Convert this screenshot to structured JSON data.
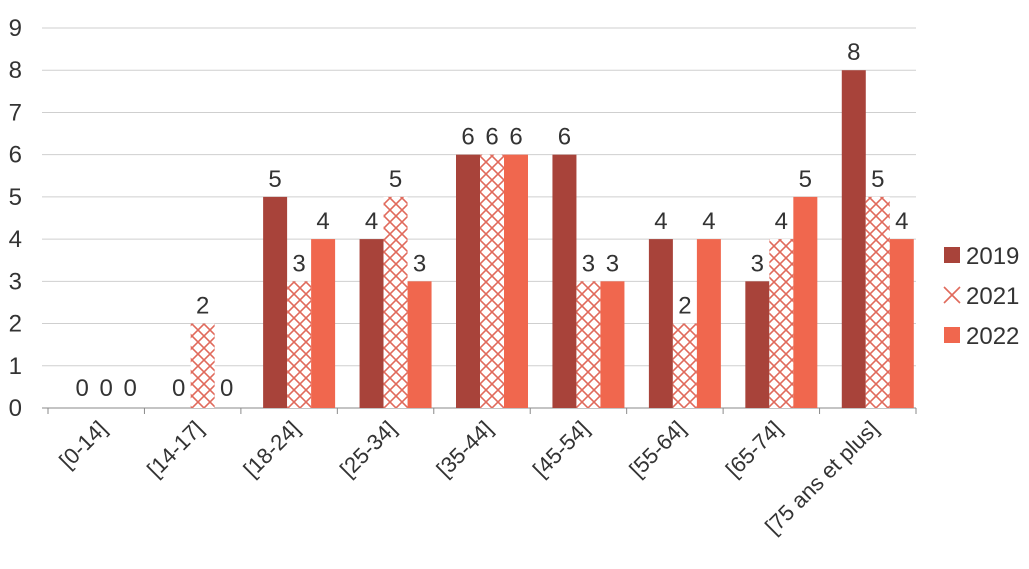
{
  "chart_data": {
    "type": "bar",
    "title": "",
    "xlabel": "",
    "ylabel": "",
    "categories": [
      "[0-14]",
      "[14-17]",
      "[18-24]",
      "[25-34]",
      "[35-44]",
      "[45-54]",
      "[55-64]",
      "[65-74]",
      "[75 ans et plus]"
    ],
    "series": [
      {
        "name": "2019",
        "values": [
          0,
          0,
          5,
          4,
          6,
          6,
          4,
          3,
          8
        ],
        "color": "#a8433a",
        "pattern": "solid"
      },
      {
        "name": "2021",
        "values": [
          0,
          2,
          3,
          5,
          6,
          3,
          2,
          4,
          5
        ],
        "color": "#e06a5c",
        "pattern": "crosshatch"
      },
      {
        "name": "2022",
        "values": [
          0,
          0,
          4,
          3,
          6,
          3,
          4,
          5,
          4
        ],
        "color": "#f0674e",
        "pattern": "solid"
      }
    ],
    "ylim": [
      0,
      9
    ],
    "yticks": [
      "0",
      "1",
      "2",
      "3",
      "4",
      "5",
      "6",
      "7",
      "8",
      "9"
    ],
    "grid": true,
    "legend": "right"
  }
}
